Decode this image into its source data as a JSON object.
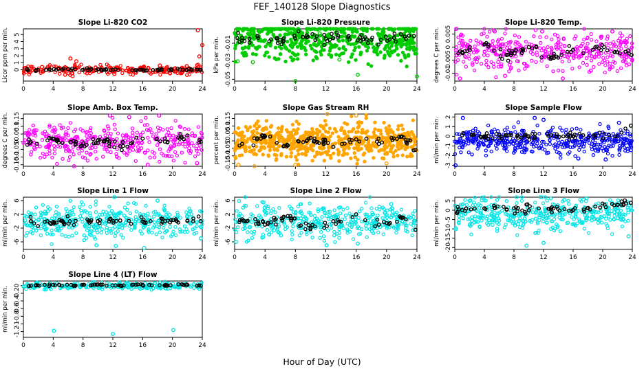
{
  "figure": {
    "title": "FEF_140128  Slope Diagnostics",
    "xlabel": "Hour of Day (UTC)"
  },
  "chart_data": [
    {
      "type": "scatter",
      "title": "Slope Li-820 CO2",
      "xlabel": "",
      "ylabel": "Licor ppm per min.",
      "xlim": [
        0,
        24
      ],
      "ylim": [
        -1.6,
        5.8
      ],
      "xticks": [
        0,
        4,
        8,
        12,
        16,
        20,
        24
      ],
      "yticks": [
        0,
        1,
        2,
        3,
        4,
        5
      ],
      "colors": {
        "points": "#ff0000",
        "overlay": "#000000"
      },
      "series": [
        {
          "values": [
            [
              6.3,
              1.6
            ],
            [
              7.1,
              1.2
            ],
            [
              6.6,
              -0.9
            ],
            [
              5.6,
              -0.7
            ],
            [
              23.4,
              5.6
            ],
            [
              23.6,
              1.9
            ],
            [
              24.0,
              3.5
            ],
            [
              2.5,
              0.4
            ],
            [
              12.2,
              -0.6
            ],
            [
              18.3,
              0.6
            ],
            [
              0.3,
              -0.3
            ],
            [
              9.7,
              0.3
            ],
            [
              15.1,
              -0.4
            ],
            [
              21.9,
              0.5
            ],
            [
              4.8,
              0.3
            ]
          ]
        },
        {
          "values": [
            [
              0.5,
              0.05
            ],
            [
              3.0,
              0.0
            ],
            [
              6.0,
              0.1
            ],
            [
              9.0,
              0.0
            ],
            [
              12.0,
              0.0
            ],
            [
              15.0,
              -0.05
            ],
            [
              18.0,
              0.0
            ],
            [
              21.0,
              0.05
            ],
            [
              23.8,
              0.0
            ]
          ]
        }
      ]
    },
    {
      "type": "scatter",
      "title": "Slope Li-820 Pressure",
      "xlabel": "",
      "ylabel": "kPa per min.",
      "xlim": [
        0,
        24
      ],
      "ylim": [
        -0.052,
        0.006
      ],
      "xticks": [
        0,
        4,
        8,
        12,
        16,
        20,
        24
      ],
      "yticks": [
        -0.05,
        -0.03,
        -0.01
      ],
      "colors": {
        "points": "#00cc00",
        "overlay": "#000000"
      },
      "series": [
        {
          "values": [
            [
              8.0,
              -0.052
            ],
            [
              16.2,
              -0.045
            ],
            [
              24.0,
              -0.047
            ],
            [
              0.4,
              -0.03
            ],
            [
              2.4,
              -0.031
            ],
            [
              20.3,
              0.006
            ],
            [
              13.8,
              -0.028
            ],
            [
              11.2,
              0.001
            ]
          ]
        },
        {
          "values": [
            [
              1.0,
              -0.004
            ],
            [
              3.0,
              -0.002
            ],
            [
              6.0,
              -0.006
            ],
            [
              9.0,
              -0.003
            ],
            [
              12.0,
              -0.005
            ],
            [
              15.0,
              -0.002
            ],
            [
              18.0,
              -0.006
            ],
            [
              21.0,
              -0.004
            ],
            [
              23.6,
              -0.002
            ]
          ]
        }
      ]
    },
    {
      "type": "scatter",
      "title": "Slope Li-820 Temp.",
      "xlabel": "",
      "ylabel": "degrees C per min.",
      "xlim": [
        0,
        24
      ],
      "ylim": [
        -0.013,
        0.007
      ],
      "xticks": [
        0,
        4,
        8,
        12,
        16,
        20,
        24
      ],
      "yticks": [
        -0.01,
        -0.005,
        0.0,
        0.005
      ],
      "colors": {
        "points": "#ff00ff",
        "overlay": "#000000"
      },
      "series": [
        {
          "values": [
            [
              0.7,
              -0.012
            ],
            [
              6.8,
              -0.011
            ],
            [
              14.6,
              -0.012
            ],
            [
              11.8,
              0.006
            ],
            [
              0.2,
              0.007
            ],
            [
              5.4,
              0.006
            ],
            [
              21.3,
              0.006
            ],
            [
              18.4,
              -0.009
            ]
          ]
        },
        {
          "values": [
            [
              1.0,
              -0.002
            ],
            [
              4.0,
              0.001
            ],
            [
              7.0,
              -0.003
            ],
            [
              10.0,
              0.0
            ],
            [
              13.0,
              -0.004
            ],
            [
              16.0,
              -0.001
            ],
            [
              19.0,
              0.0
            ],
            [
              22.0,
              -0.002
            ],
            [
              23.9,
              -0.003
            ]
          ]
        }
      ]
    },
    {
      "type": "scatter",
      "title": "Slope Amb. Box Temp.",
      "xlabel": "",
      "ylabel": "degrees C per min.",
      "xlim": [
        0,
        24
      ],
      "ylim": [
        -0.16,
        0.18
      ],
      "xticks": [
        0,
        4,
        8,
        12,
        16,
        20,
        24
      ],
      "yticks": [
        -0.15,
        -0.1,
        -0.05,
        0.0,
        0.05,
        0.1,
        0.15
      ],
      "colors": {
        "points": "#ff00ff",
        "overlay": "#000000"
      },
      "series": [
        {
          "values": [
            [
              11.6,
              0.17
            ],
            [
              14.2,
              0.16
            ],
            [
              18.2,
              0.17
            ],
            [
              6.8,
              -0.16
            ],
            [
              16.7,
              -0.15
            ],
            [
              23.3,
              -0.14
            ]
          ]
        },
        {
          "values": [
            [
              1.0,
              0.0
            ],
            [
              4.0,
              0.02
            ],
            [
              7.0,
              -0.02
            ],
            [
              10.0,
              0.01
            ],
            [
              13.0,
              -0.03
            ],
            [
              16.0,
              0.02
            ],
            [
              19.0,
              0.0
            ],
            [
              22.0,
              0.04
            ],
            [
              23.8,
              0.0
            ]
          ]
        }
      ]
    },
    {
      "type": "scatter",
      "title": "Slope Gas Stream RH",
      "xlabel": "",
      "ylabel": "percent per min.",
      "xlim": [
        0,
        24
      ],
      "ylim": [
        -0.17,
        0.18
      ],
      "xticks": [
        0,
        4,
        8,
        12,
        16,
        20,
        24
      ],
      "yticks": [
        -0.15,
        -0.1,
        -0.05,
        0.0,
        0.05,
        0.1,
        0.15
      ],
      "colors": {
        "points": "#ffa500",
        "overlay": "#000000"
      },
      "series": [
        {
          "values": [
            [
              12.2,
              0.18
            ],
            [
              2.6,
              -0.17
            ],
            [
              8.0,
              -0.16
            ],
            [
              20.0,
              -0.15
            ],
            [
              0.5,
              -0.16
            ],
            [
              16.0,
              0.17
            ]
          ]
        },
        {
          "values": [
            [
              1.0,
              -0.02
            ],
            [
              4.0,
              0.03
            ],
            [
              7.0,
              -0.03
            ],
            [
              10.0,
              0.02
            ],
            [
              13.0,
              -0.04
            ],
            [
              16.0,
              0.01
            ],
            [
              19.0,
              -0.02
            ],
            [
              22.0,
              0.03
            ],
            [
              23.8,
              -0.06
            ]
          ]
        }
      ]
    },
    {
      "type": "scatter",
      "title": "Slope Sample Flow",
      "xlabel": "",
      "ylabel": "ml/min per min.",
      "xlim": [
        0,
        24
      ],
      "ylim": [
        -3.1,
        2.3
      ],
      "xticks": [
        0,
        4,
        8,
        12,
        16,
        20,
        24
      ],
      "yticks": [
        -3,
        -2,
        -1,
        0,
        1,
        2
      ],
      "colors": {
        "points": "#0000ff",
        "overlay": "#000000"
      },
      "series": [
        {
          "values": [
            [
              0.1,
              -3.0
            ],
            [
              1.1,
              1.9
            ],
            [
              10.8,
              1.9
            ],
            [
              12.0,
              1.7
            ],
            [
              20.4,
              -2.4
            ],
            [
              16.7,
              -2.3
            ],
            [
              22.2,
              1.4
            ]
          ]
        },
        {
          "values": [
            [
              1.0,
              0.1
            ],
            [
              4.0,
              0.0
            ],
            [
              7.0,
              0.1
            ],
            [
              10.0,
              0.0
            ],
            [
              13.0,
              0.1
            ],
            [
              16.0,
              0.0
            ],
            [
              19.0,
              0.1
            ],
            [
              22.0,
              0.0
            ],
            [
              23.8,
              1.1
            ]
          ]
        }
      ]
    },
    {
      "type": "scatter",
      "title": "Slope Line 1 Flow",
      "xlabel": "",
      "ylabel": "ml/min per min.",
      "xlim": [
        0,
        24
      ],
      "ylim": [
        -8.2,
        7.0
      ],
      "xticks": [
        0,
        4,
        8,
        12,
        16,
        20,
        24
      ],
      "yticks": [
        -6,
        -2,
        2,
        6
      ],
      "colors": {
        "points": "#00e5e5",
        "overlay": "#000000"
      },
      "series": [
        {
          "values": [
            [
              12.2,
              7.0
            ],
            [
              16.2,
              -7.8
            ],
            [
              12.4,
              -7.2
            ],
            [
              9.8,
              -7.0
            ],
            [
              23.8,
              -5.0
            ],
            [
              18.0,
              6.0
            ]
          ]
        },
        {
          "values": [
            [
              1.0,
              0.0
            ],
            [
              4.0,
              -0.2
            ],
            [
              7.0,
              0.1
            ],
            [
              10.0,
              0.0
            ],
            [
              13.0,
              0.2
            ],
            [
              16.0,
              -0.1
            ],
            [
              19.0,
              0.0
            ],
            [
              22.0,
              0.1
            ],
            [
              23.8,
              0.0
            ]
          ]
        }
      ]
    },
    {
      "type": "scatter",
      "title": "Slope Line 2 Flow",
      "xlabel": "",
      "ylabel": "ml/min per min.",
      "xlim": [
        0,
        24
      ],
      "ylim": [
        -8.2,
        7.0
      ],
      "xticks": [
        0,
        4,
        8,
        12,
        16,
        20,
        24
      ],
      "yticks": [
        -6,
        -2,
        2,
        6
      ],
      "colors": {
        "points": "#00e5e5",
        "overlay": "#000000"
      },
      "series": [
        {
          "values": [
            [
              12.1,
              -7.0
            ],
            [
              16.2,
              -6.5
            ],
            [
              3.8,
              5.5
            ],
            [
              20.6,
              5.0
            ],
            [
              0.2,
              -6.0
            ]
          ]
        },
        {
          "values": [
            [
              1.0,
              0.5
            ],
            [
              4.0,
              -1.0
            ],
            [
              7.0,
              1.5
            ],
            [
              10.0,
              -2.0
            ],
            [
              13.0,
              0.0
            ],
            [
              16.0,
              2.0
            ],
            [
              19.0,
              -1.0
            ],
            [
              22.0,
              1.0
            ],
            [
              23.8,
              -2.5
            ]
          ]
        }
      ]
    },
    {
      "type": "scatter",
      "title": "Slope Line 3 Flow",
      "xlabel": "",
      "ylabel": "ml/min per min.",
      "xlim": [
        0,
        24
      ],
      "ylim": [
        -21,
        7
      ],
      "xticks": [
        0,
        4,
        8,
        12,
        16,
        20,
        24
      ],
      "yticks": [
        -20,
        -15,
        -10,
        -5,
        0,
        5
      ],
      "colors": {
        "points": "#00e5e5",
        "overlay": "#000000"
      },
      "series": [
        {
          "values": [
            [
              9.7,
              -19.0
            ],
            [
              12.0,
              -17.5
            ],
            [
              23.5,
              -14.0
            ],
            [
              14.8,
              5.5
            ],
            [
              2.0,
              5.0
            ]
          ]
        },
        {
          "values": [
            [
              1.0,
              0.0
            ],
            [
              4.0,
              1.0
            ],
            [
              7.0,
              0.5
            ],
            [
              10.0,
              0.0
            ],
            [
              13.0,
              1.0
            ],
            [
              16.0,
              0.0
            ],
            [
              19.0,
              2.0
            ],
            [
              22.0,
              3.0
            ],
            [
              23.8,
              4.0
            ]
          ]
        }
      ]
    },
    {
      "type": "scatter",
      "title": "Slope Line 4 (LT) Flow",
      "xlabel": "",
      "ylabel": "ml/min per min.",
      "xlim": [
        0,
        24
      ],
      "ylim": [
        -1.35,
        0.12
      ],
      "xticks": [
        0,
        4,
        8,
        12,
        16,
        20,
        24
      ],
      "yticks": [
        -1.2,
        -1.0,
        -0.8,
        -0.6,
        -0.4,
        -0.2,
        0.0
      ],
      "colors": {
        "points": "#00e5e5",
        "overlay": "#000000"
      },
      "series": [
        {
          "values": [
            [
              4.1,
              -1.18
            ],
            [
              12.0,
              -1.26
            ],
            [
              20.1,
              -1.16
            ],
            [
              3.0,
              -0.1
            ],
            [
              14.5,
              -0.08
            ]
          ]
        },
        {
          "values": [
            [
              1.0,
              0.0
            ],
            [
              4.0,
              0.02
            ],
            [
              7.0,
              0.0
            ],
            [
              10.0,
              0.03
            ],
            [
              13.0,
              0.0
            ],
            [
              16.0,
              0.02
            ],
            [
              19.0,
              0.0
            ],
            [
              22.0,
              0.02
            ],
            [
              23.8,
              0.0
            ]
          ]
        }
      ]
    }
  ]
}
